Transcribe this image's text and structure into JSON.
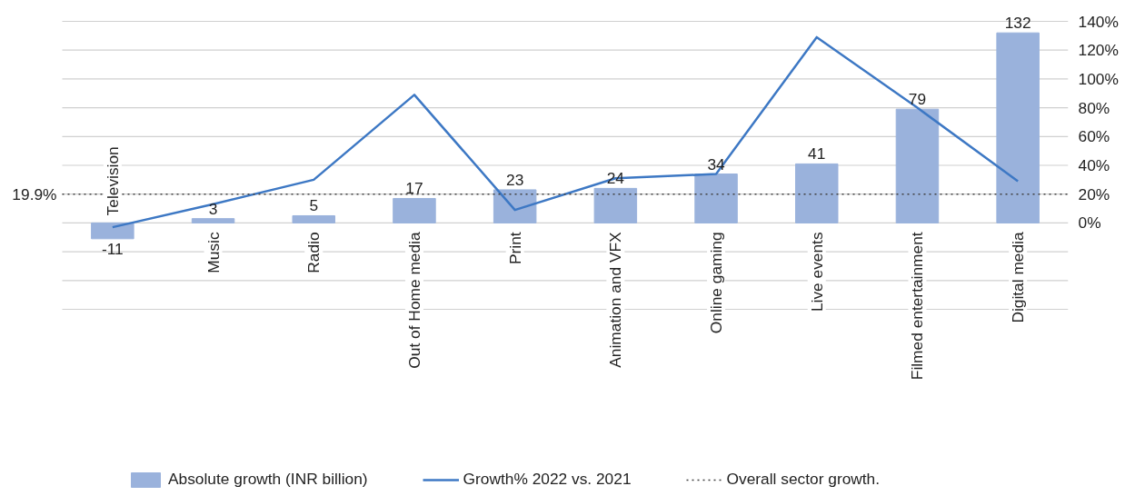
{
  "chart_data": {
    "type": "bar",
    "categories": [
      "Television",
      "Music",
      "Radio",
      "Out of Home media",
      "Print",
      "Animation and VFX",
      "Online gaming",
      "Live events",
      "Filmed entertainment",
      "Digital media"
    ],
    "series": [
      {
        "name": "Absolute growth (INR billion)",
        "color": "#9ab2dc",
        "values": [
          -11,
          3,
          5,
          17,
          23,
          24,
          34,
          41,
          79,
          132
        ],
        "value_labels": [
          "-11",
          "3",
          "5",
          "17",
          "23",
          "24",
          "34",
          "41",
          "79",
          "132"
        ]
      },
      {
        "name": "Growth% 2022 vs. 2021",
        "type": "line",
        "axis": "y2",
        "color": "#3d78c4",
        "values": [
          -3,
          13,
          30,
          89,
          9,
          31,
          34,
          129,
          80,
          29
        ]
      }
    ],
    "y2lim": [
      -60,
      140
    ],
    "y2ticks": [
      {
        "value": -60,
        "label": null
      },
      {
        "value": -40,
        "label": null
      },
      {
        "value": -20,
        "label": null
      },
      {
        "value": 0,
        "label": "0%"
      },
      {
        "value": 20,
        "label": "20%"
      },
      {
        "value": 40,
        "label": "40%"
      },
      {
        "value": 60,
        "label": "60%"
      },
      {
        "value": 80,
        "label": "80%"
      },
      {
        "value": 100,
        "label": "100%"
      },
      {
        "value": 120,
        "label": "120%"
      },
      {
        "value": 140,
        "label": "140%"
      }
    ],
    "tick_labels": "y2",
    "grid": "y",
    "ref_lines": [
      {
        "axis": "y2",
        "value": 19.9,
        "label": "19.9%",
        "color": "#404040",
        "line_style": "dotted"
      }
    ],
    "annotations": [
      "Overall sector growth."
    ],
    "legend": "bottom",
    "line_style": "solid",
    "marker": "none"
  }
}
